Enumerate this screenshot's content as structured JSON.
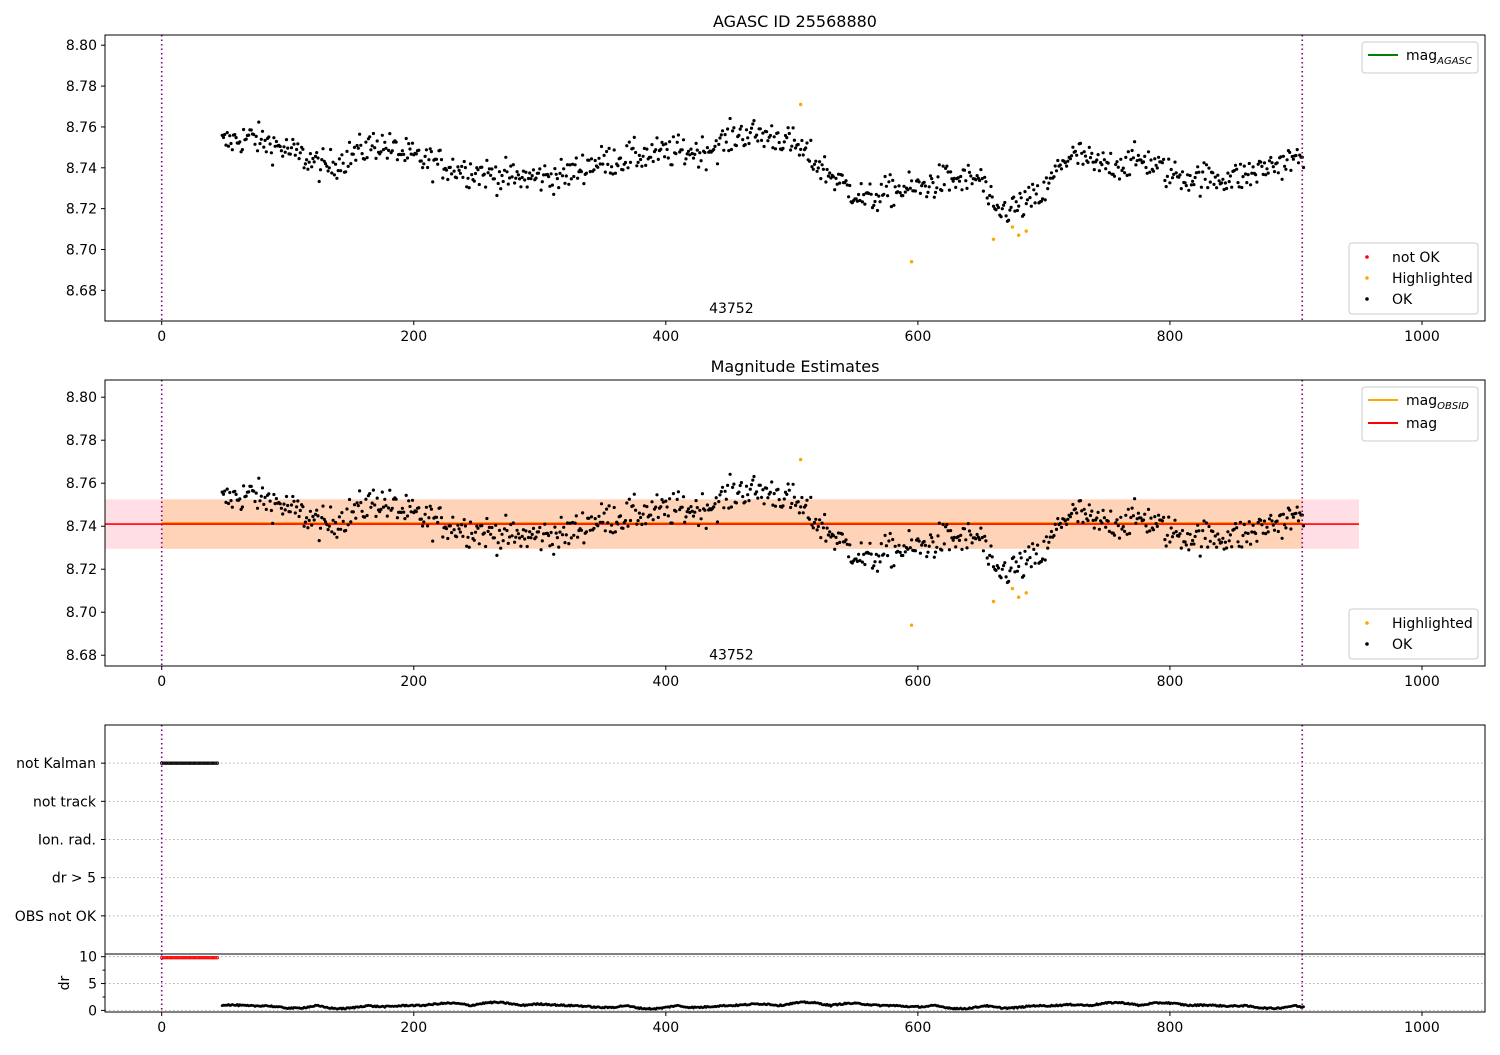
{
  "chart_data": [
    {
      "type": "scatter",
      "title": "AGASC ID 25568880",
      "xlim": [
        -45,
        1050
      ],
      "ylim": [
        8.665,
        8.805
      ],
      "xticks": [
        0,
        200,
        400,
        600,
        800,
        1000
      ],
      "yticks": [
        8.68,
        8.7,
        8.72,
        8.74,
        8.76,
        8.78,
        8.8
      ],
      "obsid_boundaries": [
        0,
        905
      ],
      "obsid_label": {
        "text": "43752",
        "x": 452,
        "y": 8.669
      },
      "legend_lines": [
        {
          "name": "magAGASC",
          "base": "mag",
          "sub": "AGASC",
          "color": "#008000"
        }
      ],
      "legend_points": [
        {
          "name": "not OK",
          "color": "#ff0000"
        },
        {
          "name": "Highlighted",
          "color": "#ffa500"
        },
        {
          "name": "OK",
          "color": "#000000"
        }
      ],
      "highlighted": {
        "x": [
          507,
          595,
          660,
          675,
          680,
          686
        ],
        "y": [
          8.771,
          8.694,
          8.705,
          8.711,
          8.707,
          8.709
        ]
      },
      "grid": false
    },
    {
      "type": "scatter",
      "title": "Magnitude Estimates",
      "xlim": [
        -45,
        1050
      ],
      "ylim": [
        8.675,
        8.808
      ],
      "xticks": [
        0,
        200,
        400,
        600,
        800,
        1000
      ],
      "yticks": [
        8.68,
        8.7,
        8.72,
        8.74,
        8.76,
        8.78,
        8.8
      ],
      "obsid_boundaries": [
        0,
        905
      ],
      "obsid_label": {
        "text": "43752",
        "x": 452,
        "y": 8.678
      },
      "mag_line": {
        "value": 8.741,
        "band": [
          8.7295,
          8.7525
        ],
        "x_range": [
          -45,
          950
        ],
        "color": "#ff0000"
      },
      "mag_obsid_line": {
        "value": 8.7415,
        "band": [
          8.7295,
          8.7525
        ],
        "x_range": [
          0,
          905
        ],
        "color": "#ffa500"
      },
      "legend_lines": [
        {
          "name": "magOBSID",
          "base": "mag",
          "sub": "OBSID",
          "color": "#ffa500"
        },
        {
          "name": "mag",
          "base": "mag",
          "sub": "",
          "color": "#ff0000"
        }
      ],
      "legend_points": [
        {
          "name": "Highlighted",
          "color": "#ffa500"
        },
        {
          "name": "OK",
          "color": "#000000"
        }
      ],
      "highlighted": {
        "x": [
          507,
          595,
          660,
          675,
          680,
          686
        ],
        "y": [
          8.771,
          8.694,
          8.705,
          8.711,
          8.707,
          8.709
        ]
      },
      "grid": false
    },
    {
      "type": "scatter",
      "title": "",
      "xlim": [
        -45,
        1050
      ],
      "categories": [
        "not Kalman",
        "not track",
        "Ion. rad.",
        "dr > 5",
        "OBS not OK"
      ],
      "flags": [
        {
          "category": "not Kalman",
          "x_range": [
            0,
            45
          ]
        }
      ],
      "obsid_boundaries": [
        0,
        905
      ],
      "grid": "horizontal"
    },
    {
      "type": "scatter",
      "title": "",
      "ylabel": "dr",
      "xlim": [
        -45,
        1050
      ],
      "ylim": [
        -0.3,
        10.5
      ],
      "xticks": [
        0,
        200,
        400,
        600,
        800,
        1000
      ],
      "yticks": [
        0,
        5,
        10
      ],
      "clipped": {
        "x_range": [
          0,
          45
        ],
        "value": 10
      },
      "obsid_boundaries": [
        0,
        905
      ],
      "grid": "horizontal"
    }
  ]
}
